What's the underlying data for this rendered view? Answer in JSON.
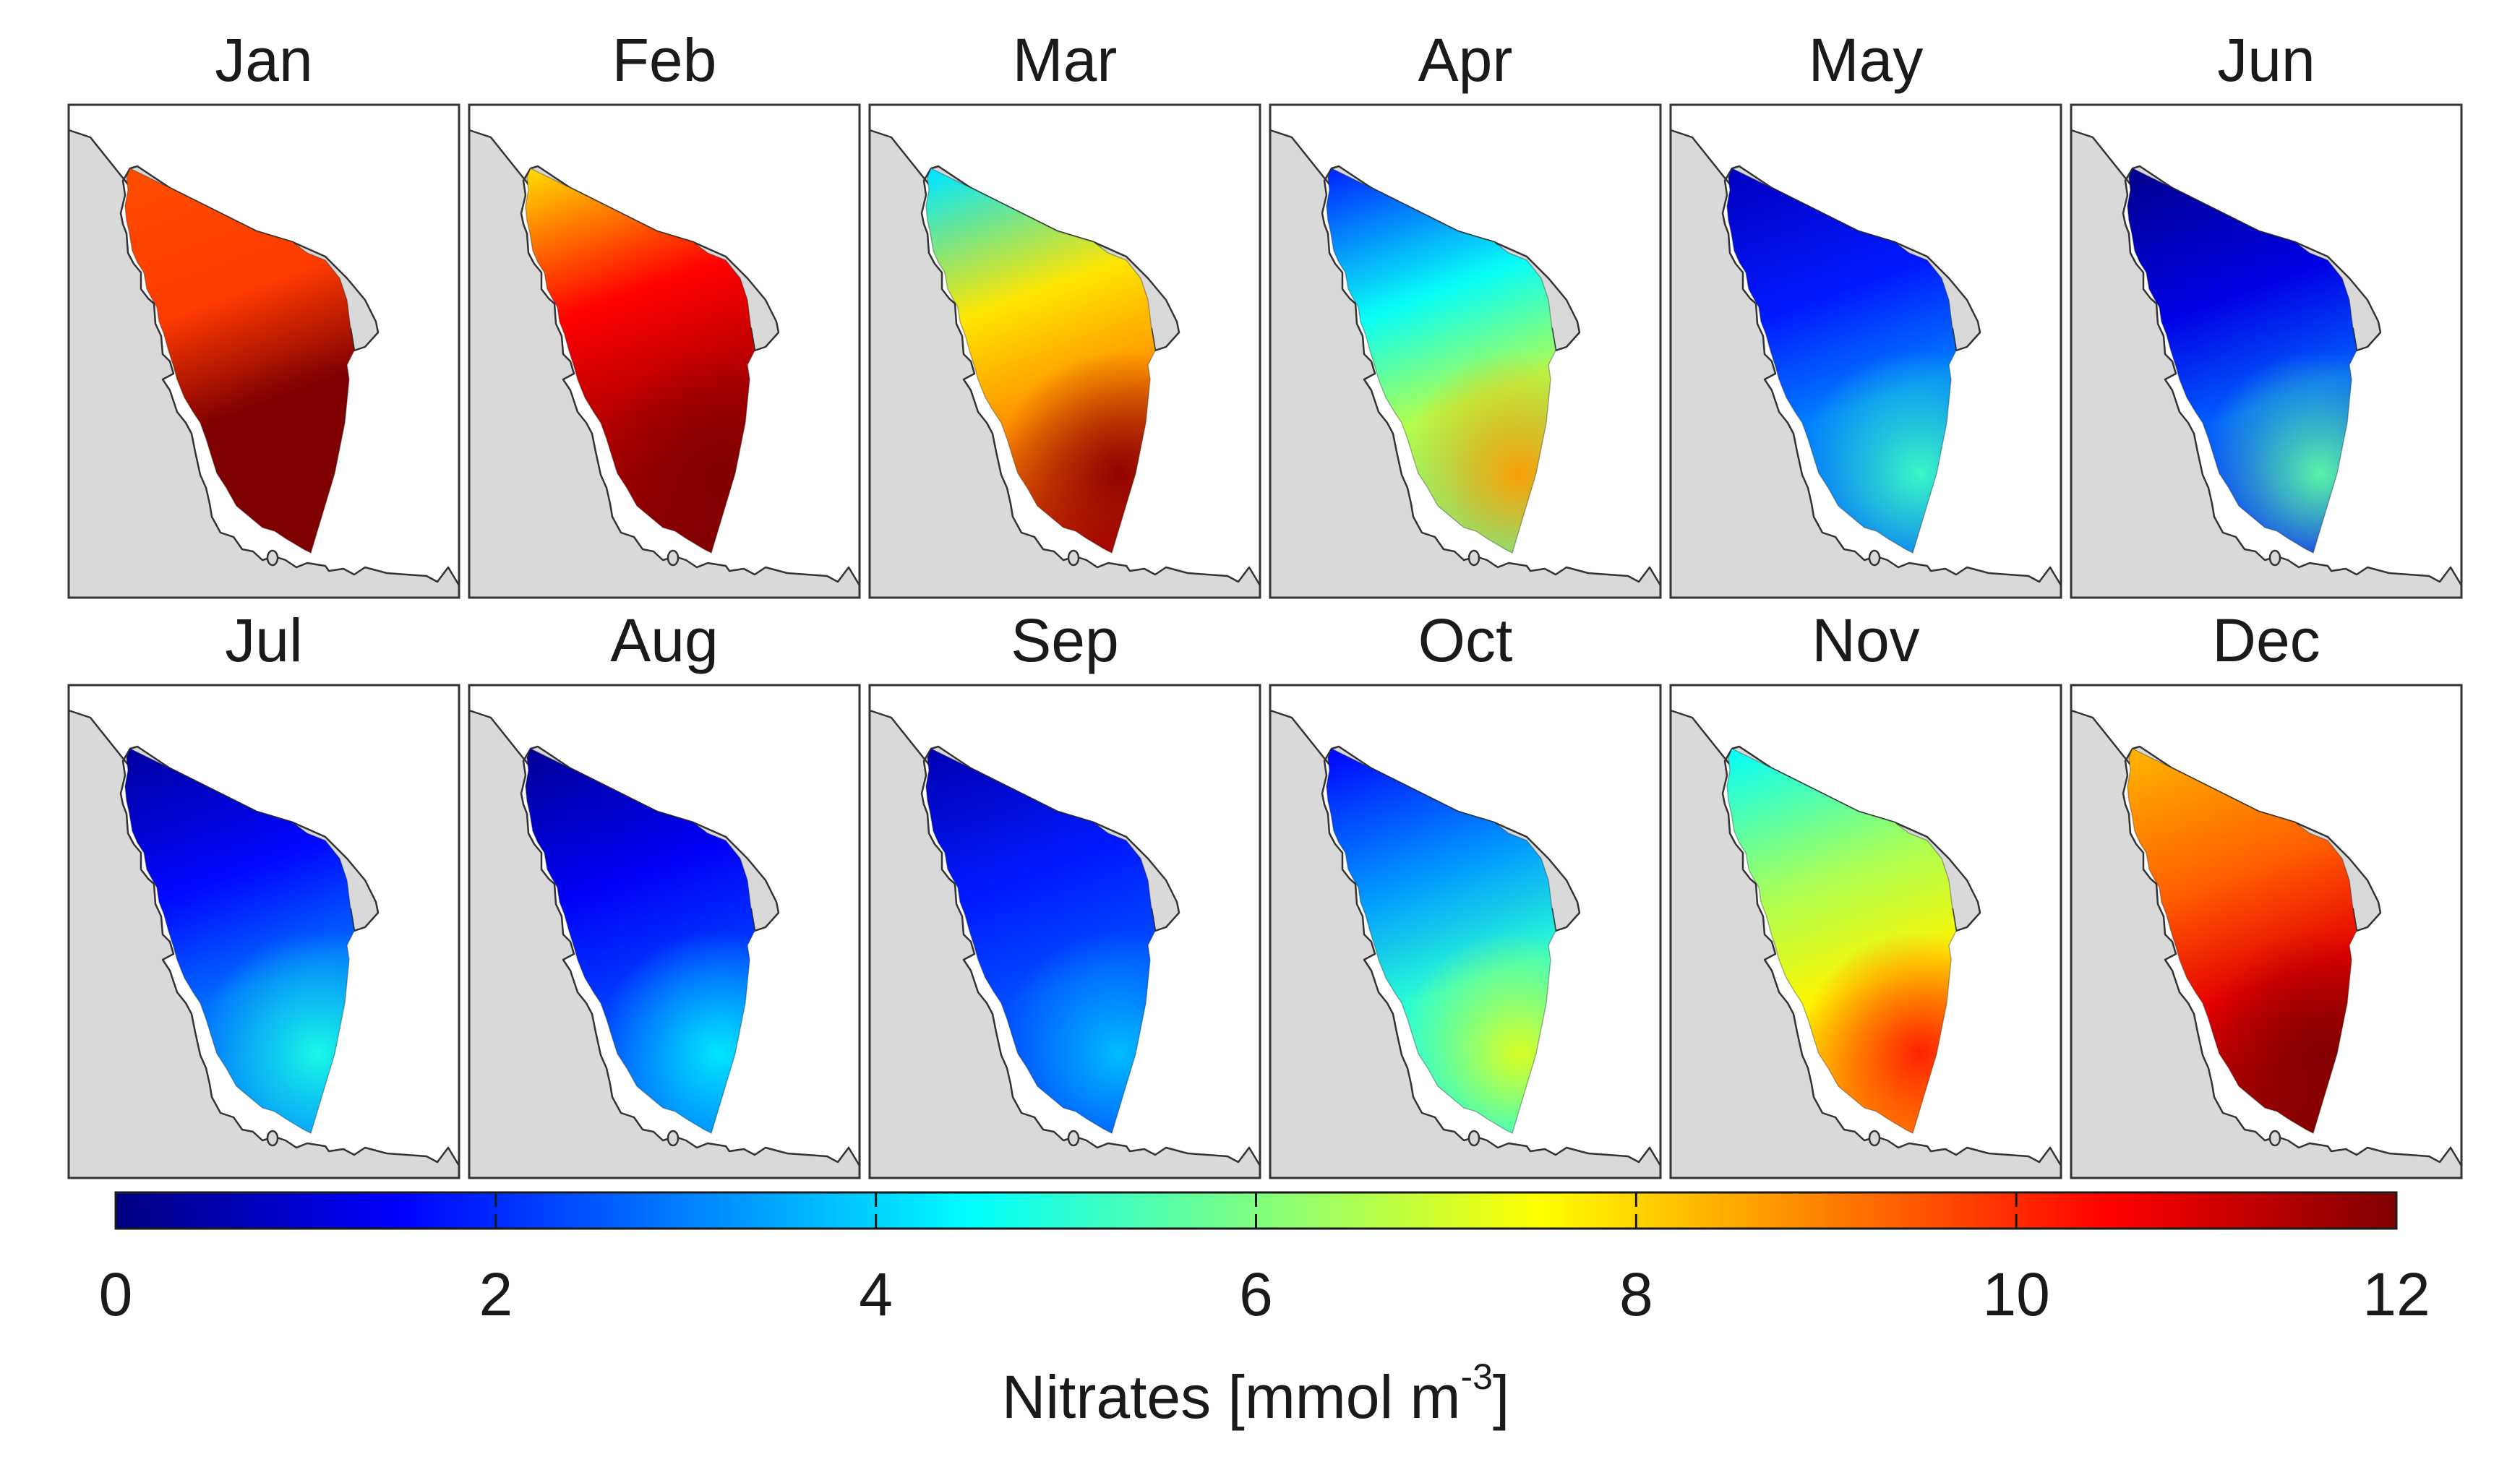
{
  "chart_data": {
    "type": "heatmap",
    "subtype": "small-multiple spatial maps",
    "panels": [
      {
        "title": "Jan",
        "nearshore": 9.6,
        "mid": 9.8,
        "south": 12.0,
        "south_hot": 12.0,
        "tip": 12.0
      },
      {
        "title": "Feb",
        "nearshore": 8.0,
        "mid": 10.5,
        "south": 11.4,
        "south_hot": 12.0,
        "tip": 12.0
      },
      {
        "title": "Mar",
        "nearshore": 4.2,
        "mid": 7.8,
        "south": 8.8,
        "south_hot": 11.8,
        "tip": 11.5
      },
      {
        "title": "Apr",
        "nearshore": 2.0,
        "mid": 4.6,
        "south": 6.6,
        "south_hot": 8.7,
        "tip": 5.5
      },
      {
        "title": "May",
        "nearshore": 0.8,
        "mid": 1.8,
        "south": 3.0,
        "south_hot": 5.2,
        "tip": 2.5
      },
      {
        "title": "Jun",
        "nearshore": 0.2,
        "mid": 1.2,
        "south": 2.6,
        "south_hot": 5.6,
        "tip": 1.5
      },
      {
        "title": "Jul",
        "nearshore": 0.4,
        "mid": 1.6,
        "south": 2.8,
        "south_hot": 4.8,
        "tip": 3.0
      },
      {
        "title": "Aug",
        "nearshore": 0.3,
        "mid": 1.4,
        "south": 2.2,
        "south_hot": 4.3,
        "tip": 2.8
      },
      {
        "title": "Sep",
        "nearshore": 0.6,
        "mid": 1.8,
        "south": 2.4,
        "south_hot": 3.8,
        "tip": 2.2
      },
      {
        "title": "Oct",
        "nearshore": 1.6,
        "mid": 3.3,
        "south": 5.0,
        "south_hot": 7.2,
        "tip": 4.5
      },
      {
        "title": "Nov",
        "nearshore": 4.6,
        "mid": 6.5,
        "south": 7.6,
        "south_hot": 10.2,
        "tip": 8.8
      },
      {
        "title": "Dec",
        "nearshore": 8.4,
        "mid": 9.4,
        "south": 10.8,
        "south_hot": 12.0,
        "tip": 12.0
      }
    ],
    "colorbar": {
      "colormap": "jet",
      "range": [
        0,
        12
      ],
      "ticks": [
        "0",
        "2",
        "4",
        "6",
        "8",
        "10",
        "12"
      ],
      "label": "Nitrates [mmol m",
      "label_sup": "-3",
      "label_end": "]"
    },
    "land_color": "#d9d9d9"
  }
}
